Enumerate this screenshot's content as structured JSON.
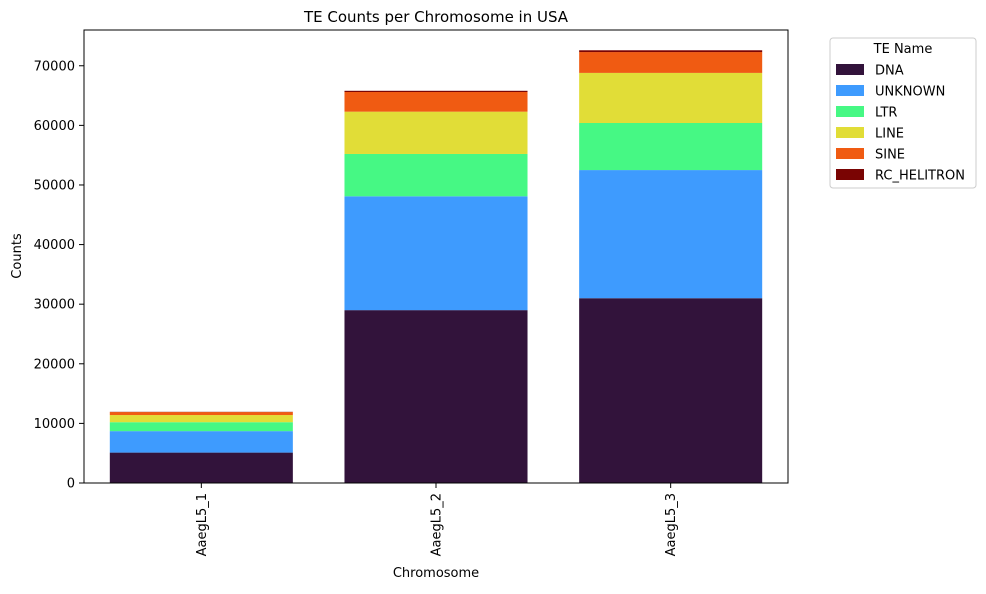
{
  "chart_data": {
    "type": "bar",
    "stacked": true,
    "title": "TE Counts per Chromosome in USA",
    "xlabel": "Chromosome",
    "ylabel": "Counts",
    "categories": [
      "AaegL5_1",
      "AaegL5_2",
      "AaegL5_3"
    ],
    "ylim": [
      0,
      76000
    ],
    "yticks": [
      0,
      10000,
      20000,
      30000,
      40000,
      50000,
      60000,
      70000
    ],
    "ytick_labels": [
      "0",
      "10000",
      "20000",
      "30000",
      "40000",
      "50000",
      "60000",
      "70000"
    ],
    "grid": false,
    "legend": {
      "title": "TE Name",
      "placement": "outside-top-right"
    },
    "series": [
      {
        "name": "DNA",
        "color": "#32133b",
        "values": [
          5100,
          29000,
          31000
        ]
      },
      {
        "name": "UNKNOWN",
        "color": "#3e9bfe",
        "values": [
          3600,
          19100,
          21500
        ]
      },
      {
        "name": "LTR",
        "color": "#46f884",
        "values": [
          1500,
          7100,
          7900
        ]
      },
      {
        "name": "LINE",
        "color": "#e1dd37",
        "values": [
          1200,
          7100,
          8400
        ]
      },
      {
        "name": "SINE",
        "color": "#f05b12",
        "values": [
          500,
          3300,
          3500
        ]
      },
      {
        "name": "RC_HELITRON",
        "color": "#7a0403",
        "values": [
          40,
          200,
          300
        ]
      }
    ]
  }
}
